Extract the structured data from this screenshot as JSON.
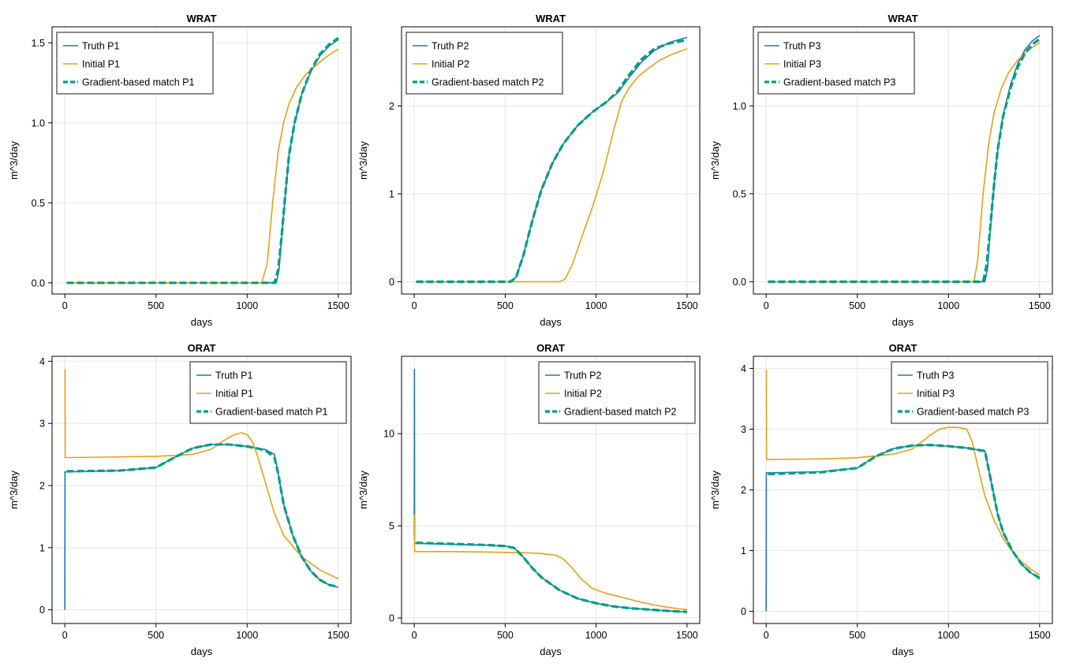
{
  "colors": {
    "truth": "#1f77b4",
    "initial": "#e6a117",
    "match": "#00a080",
    "grid": "#e5e5e5",
    "frame": "#000000",
    "legend_border": "#666666"
  },
  "chart_data": [
    {
      "type": "line",
      "title": "WRAT",
      "xlabel": "days",
      "ylabel": "m^3/day",
      "xlim": [
        -70,
        1570
      ],
      "ylim": [
        -0.07,
        1.6
      ],
      "xticks": [
        0,
        500,
        1000,
        1500
      ],
      "yticks": [
        0.0,
        0.5,
        1.0,
        1.5
      ],
      "yticklabels": [
        "0.0",
        "0.5",
        "1.0",
        "1.5"
      ],
      "legend_position": "top-left",
      "grid": true,
      "series": [
        {
          "name": "Truth P1",
          "role": "truth",
          "x": [
            10,
            1160,
            1175,
            1190,
            1210,
            1230,
            1260,
            1300,
            1350,
            1400,
            1450,
            1500
          ],
          "y": [
            0,
            0,
            0.08,
            0.3,
            0.55,
            0.8,
            1.0,
            1.18,
            1.32,
            1.42,
            1.48,
            1.52
          ]
        },
        {
          "name": "Initial P1",
          "role": "initial",
          "x": [
            10,
            1080,
            1110,
            1140,
            1170,
            1200,
            1230,
            1270,
            1320,
            1370,
            1420,
            1470,
            1500
          ],
          "y": [
            0,
            0,
            0.12,
            0.5,
            0.82,
            1.0,
            1.12,
            1.22,
            1.3,
            1.35,
            1.4,
            1.44,
            1.46
          ]
        },
        {
          "name": "Gradient-based match P1",
          "role": "match",
          "x": [
            10,
            1150,
            1170,
            1190,
            1210,
            1230,
            1260,
            1300,
            1350,
            1400,
            1450,
            1500
          ],
          "y": [
            0,
            0,
            0.08,
            0.3,
            0.56,
            0.8,
            1.0,
            1.18,
            1.33,
            1.43,
            1.49,
            1.53
          ]
        }
      ]
    },
    {
      "type": "line",
      "title": "WRAT",
      "xlabel": "days",
      "ylabel": "m^3/day",
      "xlim": [
        -70,
        1570
      ],
      "ylim": [
        -0.14,
        2.9
      ],
      "xticks": [
        0,
        500,
        1000,
        1500
      ],
      "yticks": [
        0,
        1,
        2
      ],
      "yticklabels": [
        "0",
        "1",
        "2"
      ],
      "legend_position": "top-left",
      "grid": true,
      "series": [
        {
          "name": "Truth P2",
          "role": "truth",
          "x": [
            10,
            530,
            560,
            600,
            650,
            700,
            760,
            820,
            900,
            980,
            1060,
            1120,
            1180,
            1250,
            1320,
            1400,
            1500
          ],
          "y": [
            0,
            0,
            0.05,
            0.3,
            0.7,
            1.05,
            1.35,
            1.57,
            1.78,
            1.93,
            2.05,
            2.15,
            2.32,
            2.5,
            2.63,
            2.72,
            2.78
          ]
        },
        {
          "name": "Initial P2",
          "role": "initial",
          "x": [
            10,
            800,
            830,
            870,
            920,
            980,
            1040,
            1100,
            1140,
            1180,
            1230,
            1290,
            1350,
            1420,
            1500
          ],
          "y": [
            0,
            0,
            0.03,
            0.2,
            0.5,
            0.85,
            1.25,
            1.75,
            2.05,
            2.2,
            2.33,
            2.43,
            2.52,
            2.59,
            2.65
          ]
        },
        {
          "name": "Gradient-based match P2",
          "role": "match",
          "x": [
            10,
            530,
            560,
            600,
            650,
            700,
            760,
            820,
            900,
            980,
            1060,
            1120,
            1180,
            1250,
            1320,
            1400,
            1500
          ],
          "y": [
            0,
            0,
            0.05,
            0.3,
            0.7,
            1.05,
            1.35,
            1.57,
            1.78,
            1.93,
            2.05,
            2.17,
            2.35,
            2.53,
            2.65,
            2.71,
            2.75
          ]
        }
      ]
    },
    {
      "type": "line",
      "title": "WRAT",
      "xlabel": "days",
      "ylabel": "m^3/day",
      "xlim": [
        -70,
        1570
      ],
      "ylim": [
        -0.07,
        1.45
      ],
      "xticks": [
        0,
        500,
        1000,
        1500
      ],
      "yticks": [
        0.0,
        0.5,
        1.0
      ],
      "yticklabels": [
        "0.0",
        "0.5",
        "1.0"
      ],
      "legend_position": "top-left",
      "grid": true,
      "series": [
        {
          "name": "Truth P3",
          "role": "truth",
          "x": [
            10,
            1200,
            1215,
            1230,
            1250,
            1270,
            1300,
            1340,
            1380,
            1420,
            1460,
            1500
          ],
          "y": [
            0,
            0,
            0.08,
            0.3,
            0.55,
            0.75,
            0.95,
            1.12,
            1.24,
            1.32,
            1.37,
            1.4
          ]
        },
        {
          "name": "Initial P3",
          "role": "initial",
          "x": [
            10,
            1140,
            1160,
            1190,
            1220,
            1250,
            1290,
            1330,
            1380,
            1430,
            1470,
            1500
          ],
          "y": [
            0,
            0,
            0.12,
            0.5,
            0.78,
            0.96,
            1.1,
            1.19,
            1.26,
            1.31,
            1.34,
            1.36
          ]
        },
        {
          "name": "Gradient-based match P3",
          "role": "match",
          "x": [
            10,
            1190,
            1210,
            1230,
            1250,
            1270,
            1300,
            1340,
            1380,
            1420,
            1460,
            1500
          ],
          "y": [
            0,
            0,
            0.1,
            0.32,
            0.55,
            0.75,
            0.94,
            1.1,
            1.22,
            1.3,
            1.35,
            1.38
          ]
        }
      ]
    },
    {
      "type": "line",
      "title": "ORAT",
      "xlabel": "days",
      "ylabel": "m^3/day",
      "xlim": [
        -70,
        1570
      ],
      "ylim": [
        -0.22,
        4.08
      ],
      "xticks": [
        0,
        500,
        1000,
        1500
      ],
      "yticks": [
        0,
        1,
        2,
        3,
        4
      ],
      "yticklabels": [
        "0",
        "1",
        "2",
        "3",
        "4"
      ],
      "legend_position": "top-right",
      "grid": true,
      "series": [
        {
          "name": "Truth P1",
          "role": "truth",
          "x": [
            0,
            1,
            10,
            300,
            500,
            600,
            700,
            800,
            900,
            1000,
            1100,
            1150,
            1170,
            1200,
            1250,
            1300,
            1350,
            1400,
            1450,
            1500
          ],
          "y": [
            0,
            2.22,
            2.22,
            2.24,
            2.29,
            2.45,
            2.6,
            2.66,
            2.66,
            2.63,
            2.58,
            2.5,
            2.2,
            1.7,
            1.2,
            0.85,
            0.62,
            0.48,
            0.4,
            0.36
          ]
        },
        {
          "name": "Initial P1",
          "role": "initial",
          "x": [
            1,
            2,
            10,
            300,
            500,
            700,
            800,
            870,
            930,
            970,
            1000,
            1030,
            1060,
            1100,
            1150,
            1200,
            1300,
            1400,
            1500
          ],
          "y": [
            3.87,
            2.45,
            2.45,
            2.46,
            2.47,
            2.5,
            2.58,
            2.72,
            2.82,
            2.85,
            2.82,
            2.7,
            2.45,
            2.05,
            1.55,
            1.2,
            0.85,
            0.64,
            0.5
          ]
        },
        {
          "name": "Gradient-based match P1",
          "role": "match",
          "x": [
            10,
            300,
            500,
            600,
            700,
            800,
            900,
            1000,
            1100,
            1150,
            1170,
            1200,
            1250,
            1300,
            1350,
            1400,
            1450,
            1500
          ],
          "y": [
            2.23,
            2.24,
            2.29,
            2.45,
            2.6,
            2.66,
            2.66,
            2.63,
            2.57,
            2.45,
            2.2,
            1.7,
            1.2,
            0.85,
            0.62,
            0.48,
            0.4,
            0.37
          ]
        }
      ]
    },
    {
      "type": "line",
      "title": "ORAT",
      "xlabel": "days",
      "ylabel": "m^3/day",
      "xlim": [
        -70,
        1570
      ],
      "ylim": [
        -0.3,
        14.2
      ],
      "xticks": [
        0,
        500,
        1000,
        1500
      ],
      "yticks": [
        0,
        5,
        10
      ],
      "yticklabels": [
        "0",
        "5",
        "10"
      ],
      "legend_position": "top-right",
      "grid": true,
      "series": [
        {
          "name": "Truth P2",
          "role": "truth",
          "x": [
            0,
            1,
            2,
            10,
            200,
            400,
            500,
            550,
            600,
            650,
            700,
            800,
            900,
            1000,
            1100,
            1200,
            1300,
            1400,
            1500
          ],
          "y": [
            4.5,
            13.5,
            4.05,
            4.05,
            4.0,
            3.95,
            3.9,
            3.8,
            3.3,
            2.7,
            2.2,
            1.5,
            1.05,
            0.8,
            0.62,
            0.52,
            0.45,
            0.38,
            0.33
          ]
        },
        {
          "name": "Initial P2",
          "role": "initial",
          "x": [
            0,
            1,
            2,
            10,
            200,
            400,
            600,
            700,
            780,
            820,
            870,
            920,
            980,
            1050,
            1150,
            1250,
            1350,
            1450,
            1500
          ],
          "y": [
            5.6,
            5.6,
            3.6,
            3.6,
            3.6,
            3.58,
            3.54,
            3.5,
            3.4,
            3.2,
            2.7,
            2.1,
            1.6,
            1.35,
            1.1,
            0.85,
            0.65,
            0.5,
            0.45
          ]
        },
        {
          "name": "Gradient-based match P2",
          "role": "match",
          "x": [
            10,
            200,
            400,
            500,
            550,
            600,
            650,
            700,
            800,
            900,
            1000,
            1100,
            1200,
            1300,
            1400,
            1500
          ],
          "y": [
            4.08,
            4.02,
            3.96,
            3.9,
            3.8,
            3.3,
            2.7,
            2.2,
            1.5,
            1.05,
            0.8,
            0.62,
            0.52,
            0.45,
            0.38,
            0.33
          ]
        }
      ]
    },
    {
      "type": "line",
      "title": "ORAT",
      "xlabel": "days",
      "ylabel": "m^3/day",
      "xlim": [
        -70,
        1570
      ],
      "ylim": [
        -0.2,
        4.2
      ],
      "xticks": [
        0,
        500,
        1000,
        1500
      ],
      "yticks": [
        0,
        1,
        2,
        3,
        4
      ],
      "yticklabels": [
        "0",
        "1",
        "2",
        "3",
        "4"
      ],
      "legend_position": "top-right",
      "grid": true,
      "series": [
        {
          "name": "Truth P3",
          "role": "truth",
          "x": [
            0,
            1,
            10,
            300,
            500,
            600,
            700,
            800,
            900,
            1000,
            1100,
            1200,
            1230,
            1270,
            1300,
            1350,
            1400,
            1450,
            1500
          ],
          "y": [
            0,
            2.28,
            2.28,
            2.3,
            2.36,
            2.55,
            2.68,
            2.73,
            2.74,
            2.72,
            2.69,
            2.64,
            2.2,
            1.6,
            1.3,
            1.0,
            0.78,
            0.64,
            0.53
          ]
        },
        {
          "name": "Initial P3",
          "role": "initial",
          "x": [
            1,
            2,
            10,
            300,
            500,
            700,
            800,
            900,
            950,
            1000,
            1050,
            1100,
            1130,
            1160,
            1200,
            1250,
            1300,
            1350,
            1400,
            1450,
            1500
          ],
          "y": [
            3.98,
            2.5,
            2.5,
            2.51,
            2.53,
            2.59,
            2.67,
            2.9,
            3.0,
            3.03,
            3.03,
            3.0,
            2.8,
            2.4,
            1.9,
            1.5,
            1.2,
            0.98,
            0.82,
            0.7,
            0.6
          ]
        },
        {
          "name": "Gradient-based match P3",
          "role": "match",
          "x": [
            10,
            300,
            500,
            600,
            700,
            800,
            900,
            1000,
            1100,
            1200,
            1230,
            1270,
            1300,
            1350,
            1400,
            1450,
            1500
          ],
          "y": [
            2.26,
            2.29,
            2.36,
            2.55,
            2.68,
            2.73,
            2.74,
            2.72,
            2.69,
            2.64,
            2.2,
            1.6,
            1.3,
            1.0,
            0.78,
            0.64,
            0.55
          ]
        }
      ]
    }
  ]
}
